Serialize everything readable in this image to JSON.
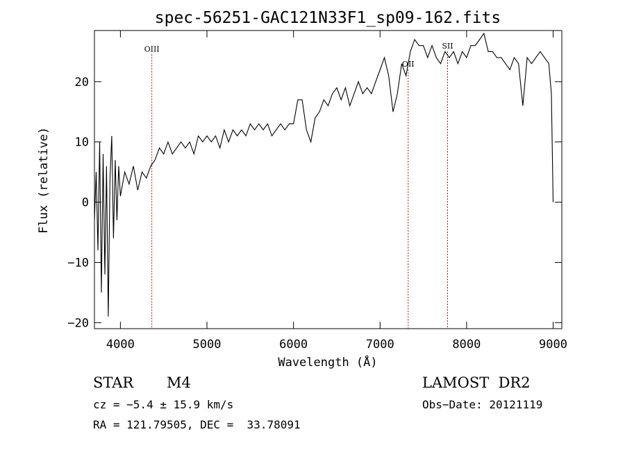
{
  "chart_data": {
    "type": "line",
    "title": "spec-56251-GAC121N33F1_sp09-162.fits",
    "xlabel": "Wavelength (Å)",
    "ylabel": "Flux (relative)",
    "xlim": [
      3700,
      9100
    ],
    "ylim": [
      -21,
      28.5
    ],
    "x_ticks": [
      4000,
      5000,
      6000,
      7000,
      8000,
      9000
    ],
    "x_tick_labels": [
      "4000",
      "5000",
      "6000",
      "7000",
      "8000",
      "9000"
    ],
    "y_ticks": [
      -20,
      -10,
      0,
      10,
      20
    ],
    "y_tick_labels": [
      "−20",
      "−10",
      "0",
      "10",
      "20"
    ],
    "grid": false,
    "series": [
      {
        "x": [
          3700,
          3720,
          3740,
          3760,
          3780,
          3800,
          3820,
          3840,
          3860,
          3880,
          3900,
          3920,
          3940,
          3960,
          3980,
          4000,
          4050,
          4100,
          4150,
          4200,
          4250,
          4300,
          4350,
          4400,
          4450,
          4500,
          4550,
          4600,
          4650,
          4700,
          4750,
          4800,
          4850,
          4900,
          4950,
          5000,
          5050,
          5100,
          5150,
          5200,
          5250,
          5300,
          5350,
          5400,
          5450,
          5500,
          5550,
          5600,
          5650,
          5700,
          5750,
          5800,
          5850,
          5900,
          5950,
          6000,
          6050,
          6100,
          6150,
          6200,
          6250,
          6300,
          6350,
          6400,
          6450,
          6500,
          6550,
          6600,
          6650,
          6700,
          6750,
          6800,
          6850,
          6900,
          6950,
          7000,
          7050,
          7100,
          7150,
          7200,
          7250,
          7300,
          7350,
          7400,
          7450,
          7500,
          7550,
          7600,
          7650,
          7700,
          7750,
          7800,
          7850,
          7900,
          7950,
          8000,
          8050,
          8100,
          8150,
          8200,
          8250,
          8300,
          8350,
          8400,
          8450,
          8500,
          8550,
          8600,
          8650,
          8700,
          8750,
          8800,
          8850,
          8900,
          8950,
          8980,
          9000
        ],
        "y": [
          -3,
          5,
          -8,
          10,
          -15,
          8,
          -12,
          6,
          -19,
          4,
          11,
          -6,
          7,
          -3,
          6,
          1,
          5,
          3,
          6,
          2,
          5,
          4,
          6,
          7,
          9,
          8,
          10,
          8,
          9,
          10,
          9,
          10,
          8,
          11,
          10,
          11,
          10,
          11,
          9,
          12,
          10,
          12,
          11,
          12,
          11,
          13,
          12,
          13,
          12,
          13,
          11,
          12,
          13,
          12,
          13,
          13,
          17,
          17,
          12,
          10,
          14,
          15,
          17,
          16,
          18,
          19,
          17,
          19,
          16,
          18,
          20,
          18,
          19,
          18,
          20,
          22,
          24,
          21,
          15,
          18,
          23,
          21,
          25,
          27,
          26,
          26,
          24,
          26,
          24,
          23,
          25,
          24,
          25,
          23,
          25,
          24,
          26,
          26,
          27,
          28,
          25,
          25,
          24,
          24,
          23,
          22,
          24,
          23,
          16,
          24,
          23,
          24,
          25,
          24,
          23,
          18,
          0
        ]
      }
    ],
    "line_markers": [
      {
        "label": "OIII",
        "x": 4363,
        "label_y": 25
      },
      {
        "label": "OII",
        "x": 7325,
        "label_y": 22.5
      },
      {
        "label": "SII",
        "x": 7780,
        "label_y": 25.5
      }
    ]
  },
  "info": {
    "object_class": "STAR",
    "subclass": "M4",
    "survey": "LAMOST  DR2",
    "cz": "cz = −5.4 ± 15.9 km/s",
    "obs_date": "Obs−Date: 20121119",
    "coords": "RA = 121.79505, DEC =  33.78091"
  }
}
